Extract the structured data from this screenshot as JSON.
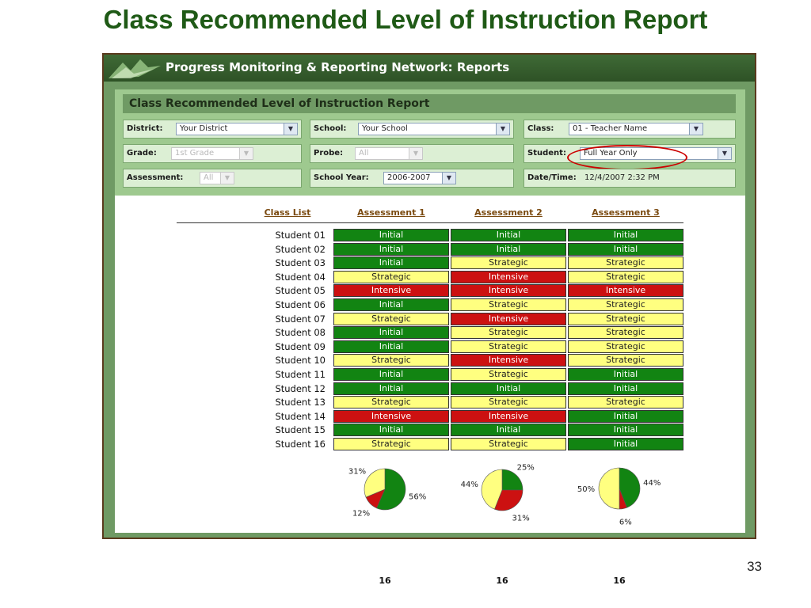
{
  "slide": {
    "title": "Class Recommended Level of Instruction Report",
    "number": "33"
  },
  "app": {
    "title": "Progress Monitoring & Reporting Network: Reports",
    "logo_icon": "leaf-logo-icon"
  },
  "report": {
    "title": "Class Recommended Level of Instruction Report"
  },
  "filters": {
    "district": {
      "label": "District:",
      "value": "Your District"
    },
    "school": {
      "label": "School:",
      "value": "Your School"
    },
    "class": {
      "label": "Class:",
      "value": "01 - Teacher Name"
    },
    "grade": {
      "label": "Grade:",
      "value": "1st Grade"
    },
    "probe": {
      "label": "Probe:",
      "value": "All"
    },
    "student": {
      "label": "Student:",
      "value": "Full Year Only"
    },
    "assessment": {
      "label": "Assessment:",
      "value": "All"
    },
    "school_year": {
      "label": "School Year:",
      "value": "2006-2007"
    },
    "datetime": {
      "label": "Date/Time:",
      "value": "12/4/2007 2:32 PM"
    }
  },
  "table": {
    "headers": [
      "Class List",
      "Assessment 1",
      "Assessment 2",
      "Assessment 3"
    ],
    "rows": [
      {
        "student": "Student 01",
        "levels": [
          "Initial",
          "Initial",
          "Initial"
        ]
      },
      {
        "student": "Student 02",
        "levels": [
          "Initial",
          "Initial",
          "Initial"
        ]
      },
      {
        "student": "Student 03",
        "levels": [
          "Initial",
          "Strategic",
          "Strategic"
        ]
      },
      {
        "student": "Student 04",
        "levels": [
          "Strategic",
          "Intensive",
          "Strategic"
        ]
      },
      {
        "student": "Student 05",
        "levels": [
          "Intensive",
          "Intensive",
          "Intensive"
        ]
      },
      {
        "student": "Student 06",
        "levels": [
          "Initial",
          "Strategic",
          "Strategic"
        ]
      },
      {
        "student": "Student 07",
        "levels": [
          "Strategic",
          "Intensive",
          "Strategic"
        ]
      },
      {
        "student": "Student 08",
        "levels": [
          "Initial",
          "Strategic",
          "Strategic"
        ]
      },
      {
        "student": "Student 09",
        "levels": [
          "Initial",
          "Strategic",
          "Strategic"
        ]
      },
      {
        "student": "Student 10",
        "levels": [
          "Strategic",
          "Intensive",
          "Strategic"
        ]
      },
      {
        "student": "Student 11",
        "levels": [
          "Initial",
          "Strategic",
          "Initial"
        ]
      },
      {
        "student": "Student 12",
        "levels": [
          "Initial",
          "Initial",
          "Initial"
        ]
      },
      {
        "student": "Student 13",
        "levels": [
          "Strategic",
          "Strategic",
          "Strategic"
        ]
      },
      {
        "student": "Student 14",
        "levels": [
          "Intensive",
          "Intensive",
          "Initial"
        ]
      },
      {
        "student": "Student 15",
        "levels": [
          "Initial",
          "Initial",
          "Initial"
        ]
      },
      {
        "student": "Student 16",
        "levels": [
          "Strategic",
          "Strategic",
          "Initial"
        ]
      }
    ]
  },
  "colors": {
    "Initial": "#128412",
    "Strategic": "#ffff80",
    "Intensive": "#cc1111"
  },
  "chart_data": [
    {
      "type": "pie",
      "categories": [
        "Initial",
        "Intensive",
        "Strategic"
      ],
      "values": [
        56,
        12,
        31
      ],
      "labels": [
        "56%",
        "12%",
        "31%"
      ],
      "total": "16"
    },
    {
      "type": "pie",
      "categories": [
        "Initial",
        "Intensive",
        "Strategic"
      ],
      "values": [
        25,
        31,
        44
      ],
      "labels": [
        "25%",
        "31%",
        "44%"
      ],
      "total": "16"
    },
    {
      "type": "pie",
      "categories": [
        "Initial",
        "Intensive",
        "Strategic"
      ],
      "values": [
        44,
        6,
        50
      ],
      "labels": [
        "44%",
        "6%",
        "50%"
      ],
      "total": "16"
    }
  ]
}
